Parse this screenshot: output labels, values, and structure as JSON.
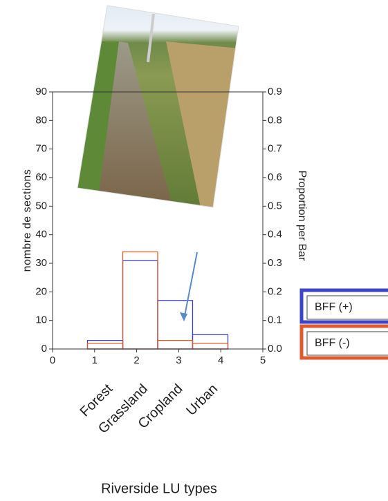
{
  "chart_data": {
    "type": "histogram",
    "bins": [
      0.83,
      1.67,
      2.5,
      3.33,
      4.17
    ],
    "categories": [
      "Forest",
      "Grassland",
      "Cropland",
      "Urban"
    ],
    "series": [
      {
        "name": "BFF (+)",
        "color": "#3b44c8",
        "values": [
          3,
          31,
          17,
          5
        ]
      },
      {
        "name": "BFF (-)",
        "color": "#e05a30",
        "values": [
          2,
          34,
          3,
          2
        ]
      }
    ],
    "xlabel": "Riverside LU types",
    "ylabel": "nombre de sections",
    "y2label": "Proportion per Bar",
    "xlim": [
      0,
      5
    ],
    "xticks": [
      0,
      1,
      2,
      3,
      4,
      5
    ],
    "ylim": [
      0,
      90
    ],
    "yticks": [
      0,
      10,
      20,
      30,
      40,
      50,
      60,
      70,
      80,
      90
    ],
    "y2lim": [
      0,
      0.9
    ],
    "y2ticks": [
      {
        "value": 0,
        "label": "0.0"
      },
      0.1,
      0.2,
      0.3,
      0.4,
      0.5,
      0.6,
      0.7,
      0.8,
      0.9
    ]
  }
}
